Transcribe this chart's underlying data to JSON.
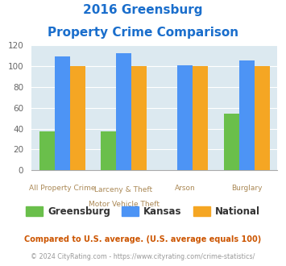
{
  "title_line1": "2016 Greensburg",
  "title_line2": "Property Crime Comparison",
  "greensburg": [
    37,
    37,
    0,
    54
  ],
  "kansas": [
    109,
    112,
    101,
    105
  ],
  "national": [
    100,
    100,
    100,
    100
  ],
  "greensburg_color": "#6abf4b",
  "kansas_color": "#4d94f5",
  "national_color": "#f5a623",
  "bg_color": "#dce9f0",
  "title_color": "#1a6ecc",
  "ylim": [
    0,
    120
  ],
  "yticks": [
    0,
    20,
    40,
    60,
    80,
    100,
    120
  ],
  "legend_labels": [
    "Greensburg",
    "Kansas",
    "National"
  ],
  "label_color": "#aa8855",
  "footnote1": "Compared to U.S. average. (U.S. average equals 100)",
  "footnote2": "© 2024 CityRating.com - https://www.cityrating.com/crime-statistics/",
  "footnote1_color": "#cc5500",
  "footnote2_color": "#999999"
}
